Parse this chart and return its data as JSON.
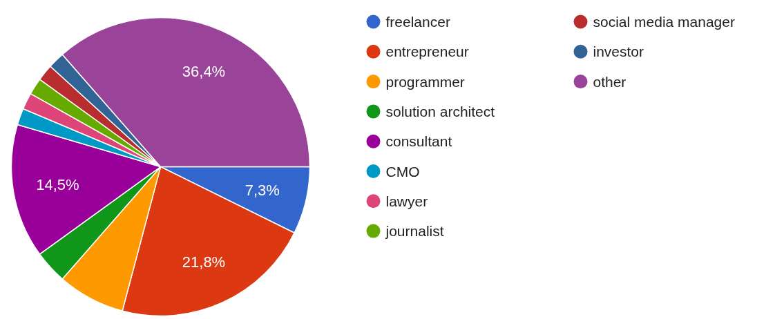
{
  "chart_data": {
    "type": "pie",
    "categories": [
      "freelancer",
      "entrepreneur",
      "programmer",
      "solution architect",
      "consultant",
      "CMO",
      "lawyer",
      "journalist",
      "social media manager",
      "investor",
      "other"
    ],
    "values": [
      7.3,
      21.8,
      7.3,
      3.6,
      14.5,
      1.8,
      1.8,
      1.8,
      1.8,
      1.8,
      36.4
    ],
    "colors": [
      "#3366cc",
      "#dc3912",
      "#ff9900",
      "#109618",
      "#990099",
      "#0099c6",
      "#dd4477",
      "#66aa00",
      "#b82e2e",
      "#316395",
      "#994499"
    ],
    "value_labels": [
      "7,3%",
      "21,8%",
      null,
      null,
      "14,5%",
      null,
      null,
      null,
      null,
      null,
      "36,4%"
    ],
    "legend": "right"
  }
}
